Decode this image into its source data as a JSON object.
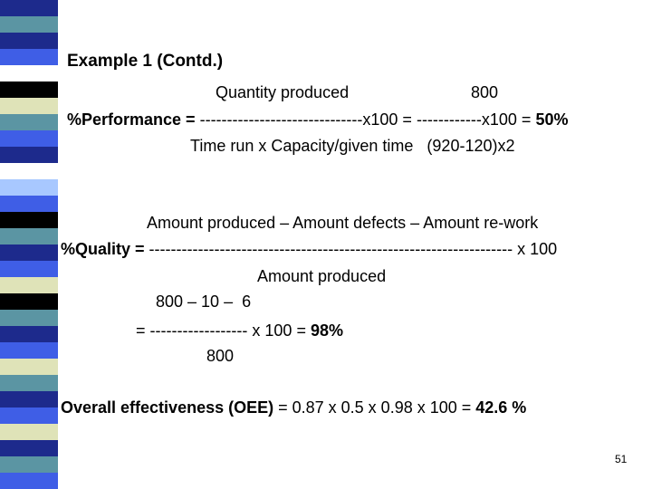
{
  "stripe_colors": [
    "#1d2a8c",
    "#5b95a3",
    "#1d2a8c",
    "#3f5ee6",
    "#ffffff",
    "#000000",
    "#dfe3b8",
    "#5b95a3",
    "#3f5ee6",
    "#1d2a8c",
    "#ffffff",
    "#a8c8ff",
    "#3f5ee6",
    "#000000",
    "#5b95a3",
    "#1d2a8c",
    "#3f5ee6",
    "#dfe3b8",
    "#000000",
    "#5b95a3",
    "#1d2a8c",
    "#3f5ee6",
    "#dfe3b8",
    "#5b95a3",
    "#1d2a8c",
    "#3f5ee6",
    "#dfe3b8",
    "#1d2a8c",
    "#5b95a3",
    "#3f5ee6"
  ],
  "title": "Example 1 (Contd.)",
  "performance": {
    "numerator": "Quantity produced",
    "numerator_value": "800",
    "label": "%Performance = ",
    "fraction_line": "------------------------------x100 = ------------x100 = ",
    "result": "50%",
    "denominator": "Time run x Capacity/given time   (920-120)x2"
  },
  "quality": {
    "numerator": "Amount produced – Amount defects – Amount re-work",
    "label": "%Quality = ",
    "fraction_line": "------------------------------------------------------------------- x 100",
    "denominator": "Amount produced",
    "calc_numerator": "800 – 10 –  6",
    "calc_line": "= ------------------ x 100 = ",
    "calc_result": "98%",
    "calc_denominator": "800"
  },
  "oee": {
    "label": "Overall effectiveness (OEE)",
    "formula": " = 0.87 x 0.5 x 0.98 x 100 = ",
    "result": "42.6 %"
  },
  "page_number": "51"
}
